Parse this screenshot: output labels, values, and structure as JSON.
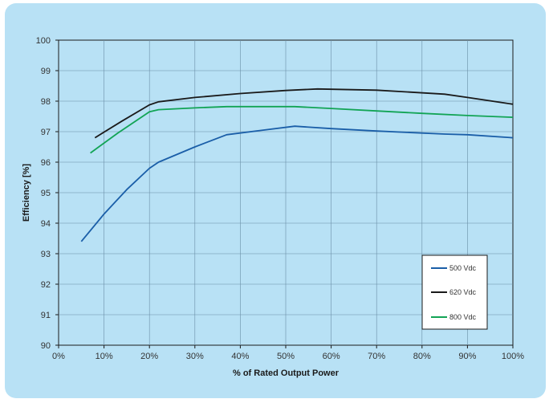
{
  "chart_data": {
    "type": "line",
    "xlabel": "% of Rated Output Power",
    "ylabel": "Efficiency [%]",
    "xlim": [
      0,
      100
    ],
    "ylim": [
      90,
      100
    ],
    "x_tick_labels": [
      "0%",
      "10%",
      "20%",
      "30%",
      "40%",
      "50%",
      "60%",
      "70%",
      "80%",
      "90%",
      "100%"
    ],
    "y_tick_labels": [
      "90",
      "91",
      "92",
      "93",
      "94",
      "95",
      "96",
      "97",
      "98",
      "99",
      "100"
    ],
    "grid": true,
    "legend_position": "bottom-right",
    "series": [
      {
        "name": "500 Vdc",
        "color": "#1a5ea8",
        "x": [
          5,
          10,
          15,
          20,
          22,
          30,
          37,
          45,
          52,
          60,
          70,
          85,
          90,
          100
        ],
        "y": [
          93.4,
          94.3,
          95.1,
          95.8,
          96.0,
          96.5,
          96.9,
          97.05,
          97.18,
          97.1,
          97.02,
          96.92,
          96.9,
          96.8
        ]
      },
      {
        "name": "620 Vdc",
        "color": "#1a1a1a",
        "x": [
          8,
          14,
          20,
          22,
          30,
          40,
          50,
          57,
          70,
          85,
          90,
          100
        ],
        "y": [
          96.8,
          97.35,
          97.88,
          97.98,
          98.12,
          98.25,
          98.35,
          98.4,
          98.36,
          98.23,
          98.12,
          97.9
        ]
      },
      {
        "name": "800 Vdc",
        "color": "#12a455",
        "x": [
          7,
          13,
          20,
          22,
          30,
          37,
          45,
          52,
          60,
          70,
          80,
          90,
          100
        ],
        "y": [
          96.3,
          96.95,
          97.65,
          97.72,
          97.78,
          97.82,
          97.82,
          97.82,
          97.76,
          97.68,
          97.6,
          97.53,
          97.47
        ]
      }
    ]
  }
}
